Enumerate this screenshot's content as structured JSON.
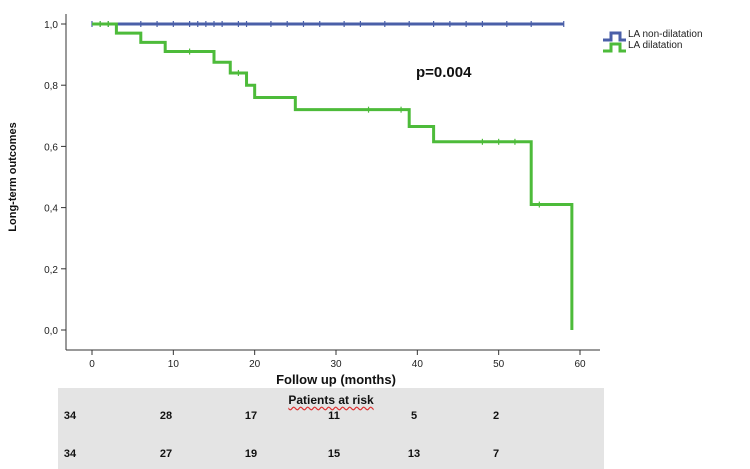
{
  "chart_data": {
    "type": "line",
    "xlabel": "Follow up (months)",
    "ylabel": "Long-term outcomes",
    "xlim": [
      0,
      60
    ],
    "ylim": [
      0,
      1
    ],
    "x_ticks": [
      "0",
      "10",
      "20",
      "30",
      "40",
      "50",
      "60"
    ],
    "y_ticks": [
      "0,0",
      "0,2",
      "0,4",
      "0,6",
      "0,8",
      "1,0"
    ],
    "grid": false,
    "legend_position": "top-right",
    "annotation": "p=0.004",
    "series": [
      {
        "name": "LA non-dilatation",
        "color": "#4a5fa8",
        "steps": [
          [
            0,
            1.0
          ],
          [
            58,
            1.0
          ]
        ],
        "censored": [
          0,
          1,
          2,
          6,
          8,
          10,
          12,
          13,
          14,
          15,
          16,
          18,
          19,
          22,
          24,
          26,
          28,
          31,
          33,
          36,
          39,
          42,
          44,
          46,
          48,
          51,
          54,
          58
        ]
      },
      {
        "name": "LA dilatation",
        "color": "#4dbb3a",
        "steps": [
          [
            0,
            1.0
          ],
          [
            3,
            0.97
          ],
          [
            6,
            0.94
          ],
          [
            9,
            0.91
          ],
          [
            15,
            0.875
          ],
          [
            17,
            0.84
          ],
          [
            19,
            0.8
          ],
          [
            20,
            0.76
          ],
          [
            25,
            0.72
          ],
          [
            39,
            0.665
          ],
          [
            42,
            0.615
          ],
          [
            54,
            0.41
          ],
          [
            59,
            0.0
          ]
        ],
        "censored": [
          1,
          2,
          12,
          18,
          34,
          38,
          48,
          50,
          52,
          55
        ]
      }
    ]
  },
  "risk_table": {
    "title": "Patients at risk",
    "rows": [
      [
        "34",
        "28",
        "17",
        "11",
        "5",
        "2"
      ],
      [
        "34",
        "27",
        "19",
        "15",
        "13",
        "7"
      ]
    ]
  }
}
